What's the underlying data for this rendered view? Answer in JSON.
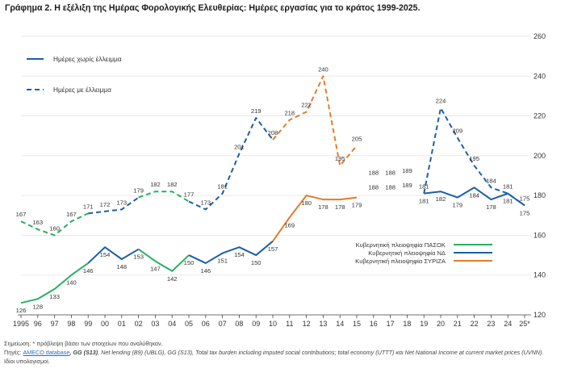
{
  "title": "Γράφημα 2. Η εξέλιξη της Ημέρας Φορολογικής Ελευθερίας: Ημέρες εργασίας για το κράτος 1999-2025.",
  "colors": {
    "pasok": "#27b062",
    "nd": "#1b5fa6",
    "syriza": "#e07d2a",
    "grid": "#e3e3e3",
    "axis": "#666666",
    "label": "#333333"
  },
  "chart_data": {
    "type": "line",
    "title": "Γράφημα 2. Η εξέλιξη της Ημέρας Φορολογικής Ελευθερίας: Ημέρες εργασίας για το κράτος 1999-2025.",
    "xlabel": "",
    "ylabel": "",
    "categories": [
      "1995",
      "96",
      "97",
      "98",
      "99",
      "00",
      "01",
      "02",
      "03",
      "04",
      "05",
      "06",
      "07",
      "08",
      "09",
      "10",
      "11",
      "12",
      "13",
      "14",
      "15",
      "16",
      "17",
      "18",
      "19",
      "20",
      "21",
      "22",
      "23",
      "24",
      "25*"
    ],
    "ylim": [
      120,
      260
    ],
    "yticks": [
      120,
      140,
      160,
      180,
      200,
      220,
      240,
      260
    ],
    "y_axis_side": "right",
    "grid": true,
    "series": [
      {
        "name": "Ημέρες χωρίς έλλειμμα",
        "style": "solid",
        "values": [
          126,
          128,
          133,
          140,
          146,
          154,
          148,
          153,
          147,
          142,
          150,
          146,
          151,
          154,
          150,
          157,
          169,
          180,
          178,
          178,
          179,
          188,
          188,
          189,
          181,
          182,
          179,
          184,
          178,
          181,
          175
        ]
      },
      {
        "name": "Ημέρες με έλλειμμα",
        "style": "dashed",
        "values": [
          167,
          163,
          160,
          167,
          171,
          172,
          173,
          179,
          182,
          182,
          177,
          173,
          181,
          201,
          219,
          208,
          218,
          222,
          240,
          195,
          205,
          188,
          188,
          189,
          181,
          224,
          209,
          195,
          184,
          181,
          175
        ]
      }
    ],
    "periods": [
      {
        "name": "Κυβερνητική πλειοψηφία ΠΑΣΟΚ",
        "color_key": "pasok",
        "ranges": [
          [
            0,
            4
          ],
          [
            7,
            10
          ]
        ]
      },
      {
        "name": "Κυβερνητική πλειοψηφία ΝΔ",
        "color_key": "nd",
        "ranges": [
          [
            4,
            7
          ],
          [
            10,
            15
          ],
          [
            24,
            30
          ]
        ]
      },
      {
        "name": "Κυβερνητική πλειοψηφία ΣΥΡΙΖΑ",
        "color_key": "syriza",
        "ranges": [
          [
            15,
            20
          ]
        ]
      }
    ],
    "label_values_solid": [
      "126",
      "128",
      "133",
      "140",
      "146",
      "154",
      "148",
      "153",
      "147",
      "142",
      "150",
      "146",
      "151",
      "154",
      "150",
      "157",
      "169",
      "180",
      "178",
      "178",
      "179",
      "188",
      "188",
      "189",
      "181",
      "182",
      "179",
      "184",
      "178",
      "181",
      "175"
    ],
    "label_values_dashed": [
      "167",
      "163",
      "160",
      "167",
      "171",
      "172",
      "173",
      "179",
      "182",
      "182",
      "177",
      "173",
      "181",
      "201",
      "219",
      "208",
      "218",
      "222",
      "240",
      "195",
      "205",
      "188",
      "188",
      "189",
      "181",
      "224",
      "209",
      "195",
      "184",
      "181",
      "175"
    ],
    "legend_top": [
      {
        "label": "Ημέρες χωρίς  έλλειμμα",
        "style": "solid"
      },
      {
        "label": "Ημέρες με έλλειμμα",
        "style": "dashed"
      }
    ],
    "legend_bottom": [
      {
        "label": "Κυβερνητική πλειοψηφία ΠΑΣΟΚ",
        "color_key": "pasok"
      },
      {
        "label": "Κυβερνητική πλειοψηφία ΝΔ",
        "color_key": "nd"
      },
      {
        "label": "Κυβερνητική πλειοψηφία ΣΥΡΙΖΑ",
        "color_key": "syriza"
      }
    ]
  },
  "notes": {
    "line1": "Σημείωση: * πρόβλεψη βάσει των στοιχείων που αναλύθηκαν.",
    "line2_prefix": "Πηγές: ",
    "line2_link": "AMECO database",
    "line2_bold": ", GG (S13)",
    "line2_rest": ", Net lending (B9) (UBLG), GG (S13), Total tax burden including imputed social contributions; total economy (UTTT) και Net National Income at current market prices (UVNN).",
    "line3": "Ιδίοι υπολογισμοί."
  }
}
